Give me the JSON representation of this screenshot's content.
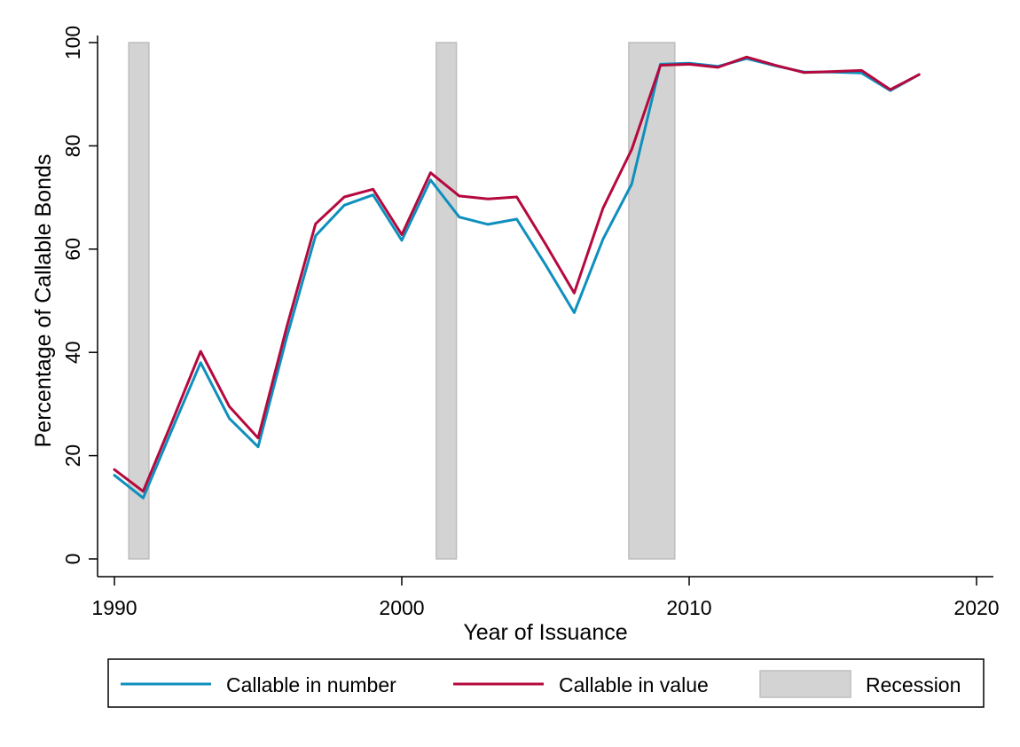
{
  "chart_data": {
    "type": "line",
    "title": "",
    "xlabel": "Year of Issuance",
    "ylabel": "Percentage of Callable Bonds",
    "xlim": [
      1990,
      2020
    ],
    "ylim": [
      0,
      100
    ],
    "x_ticks": [
      "1990",
      "2000",
      "2010",
      "2020"
    ],
    "y_ticks": [
      "0",
      "20",
      "40",
      "60",
      "80",
      "100"
    ],
    "grid": false,
    "legend_position": "bottom",
    "x": [
      1990,
      1991,
      1992,
      1993,
      1994,
      1995,
      1996,
      1997,
      1998,
      1999,
      2000,
      2001,
      2002,
      2003,
      2004,
      2005,
      2006,
      2007,
      2008,
      2009,
      2010,
      2011,
      2012,
      2013,
      2014,
      2015,
      2016,
      2017,
      2018
    ],
    "series": [
      {
        "name": "Callable in number",
        "color": "#0f8fbd",
        "values": [
          16.2,
          11.8,
          25.0,
          38.0,
          27.2,
          21.7,
          43.0,
          62.6,
          68.5,
          70.5,
          61.7,
          73.4,
          66.2,
          64.8,
          65.8,
          57.0,
          47.7,
          61.9,
          72.6,
          95.8,
          96.0,
          95.4,
          96.9,
          95.5,
          94.3,
          94.3,
          94.1,
          90.7,
          93.8
        ]
      },
      {
        "name": "Callable in value",
        "color": "#b5093e",
        "values": [
          17.3,
          13.1,
          26.5,
          40.2,
          29.5,
          23.4,
          45.0,
          64.9,
          70.1,
          71.6,
          62.8,
          74.8,
          70.3,
          69.7,
          70.1,
          61.0,
          51.5,
          67.9,
          79.3,
          95.6,
          95.8,
          95.2,
          97.2,
          95.6,
          94.2,
          94.4,
          94.6,
          90.9,
          93.8
        ]
      }
    ],
    "recessions": [
      {
        "start": 1990.5,
        "end": 1991.2
      },
      {
        "start": 2001.2,
        "end": 2001.9
      },
      {
        "start": 2007.9,
        "end": 2009.5
      }
    ],
    "recession_label": "Recession",
    "recession_color": "#d3d3d3"
  }
}
